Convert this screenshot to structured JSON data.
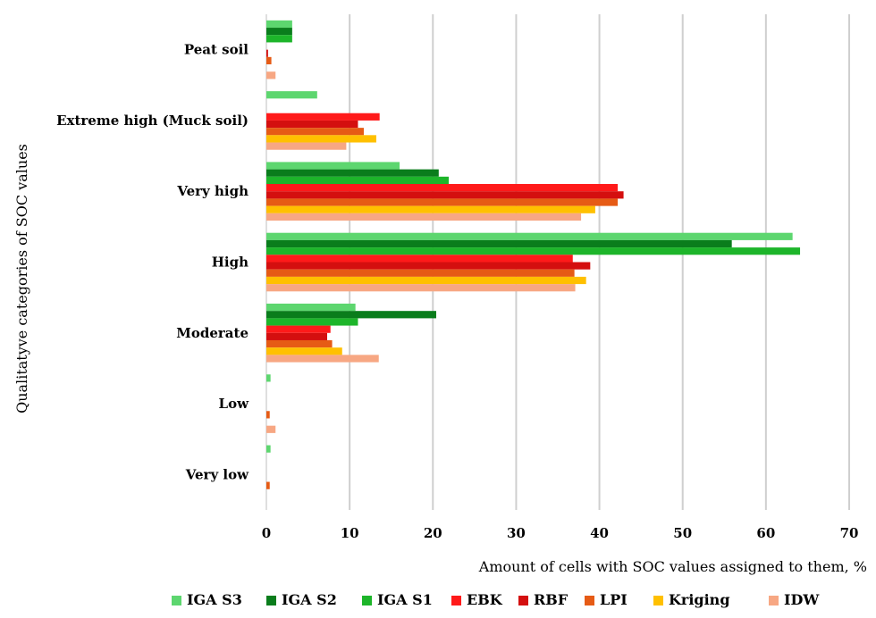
{
  "chart_data": {
    "type": "bar",
    "orientation": "horizontal",
    "categories": [
      "Peat soil",
      "Extreme high (Muck soil)",
      "Very high",
      "High",
      "Moderate",
      "Low",
      "Very low"
    ],
    "xlabel": "Amount of cells with SOC values assigned to them, %",
    "ylabel": "Qualitatyve categories of SOC values",
    "xlim": [
      0,
      70
    ],
    "xticks": [
      0,
      10,
      20,
      30,
      40,
      50,
      60,
      70
    ],
    "grid": "vertical",
    "legend_position": "bottom",
    "series": [
      {
        "name": "IGA S3",
        "color": "#5DD66F",
        "values": [
          3.1,
          6.1,
          16.0,
          63.2,
          10.7,
          0.5,
          0.5
        ]
      },
      {
        "name": "IGA S2",
        "color": "#0A7D1C",
        "values": [
          3.1,
          0,
          20.7,
          55.9,
          20.4,
          0,
          0
        ]
      },
      {
        "name": "IGA S1",
        "color": "#1DB52A",
        "values": [
          3.1,
          0,
          21.9,
          64.1,
          11.0,
          0,
          0
        ]
      },
      {
        "name": "EBK",
        "color": "#FF1A1A",
        "values": [
          0,
          13.6,
          42.2,
          36.8,
          7.7,
          0,
          0
        ]
      },
      {
        "name": "RBF",
        "color": "#D40F0F",
        "values": [
          0.2,
          11.0,
          42.9,
          38.9,
          7.3,
          0,
          0
        ]
      },
      {
        "name": "LPI",
        "color": "#E65B15",
        "values": [
          0.6,
          11.7,
          42.2,
          37.0,
          7.9,
          0.4,
          0.4
        ]
      },
      {
        "name": "Kriging",
        "color": "#FFC000",
        "values": [
          0,
          13.2,
          39.5,
          38.4,
          9.1,
          0,
          0
        ]
      },
      {
        "name": "IDW",
        "color": "#F7A783",
        "values": [
          1.1,
          9.6,
          37.8,
          37.1,
          13.5,
          1.1,
          0
        ]
      }
    ]
  }
}
